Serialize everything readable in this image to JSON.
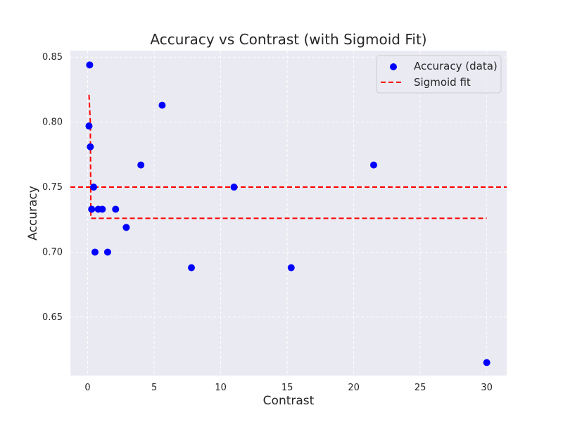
{
  "chart_data": {
    "type": "scatter",
    "title": "Accuracy vs Contrast (with Sigmoid Fit)",
    "xlabel": "Contrast",
    "ylabel": "Accuracy",
    "xlim": [
      -1.3,
      31.5
    ],
    "ylim": [
      0.605,
      0.855
    ],
    "x_ticks": [
      0,
      5,
      10,
      15,
      20,
      25,
      30
    ],
    "y_ticks": [
      0.65,
      0.7,
      0.75,
      0.8,
      0.85
    ],
    "x_tick_labels": [
      "0",
      "5",
      "10",
      "15",
      "20",
      "25",
      "30"
    ],
    "y_tick_labels": [
      "0.65",
      "0.70",
      "0.75",
      "0.80",
      "0.85"
    ],
    "grid": true,
    "legend_position": "top-right",
    "series": [
      {
        "name": "Accuracy (data)",
        "kind": "scatter",
        "color": "#0000ff",
        "points": [
          {
            "x": 0.1,
            "y": 0.797
          },
          {
            "x": 0.15,
            "y": 0.844
          },
          {
            "x": 0.2,
            "y": 0.781
          },
          {
            "x": 0.3,
            "y": 0.733
          },
          {
            "x": 0.45,
            "y": 0.75
          },
          {
            "x": 0.55,
            "y": 0.7
          },
          {
            "x": 0.8,
            "y": 0.733
          },
          {
            "x": 1.1,
            "y": 0.733
          },
          {
            "x": 1.5,
            "y": 0.7
          },
          {
            "x": 2.1,
            "y": 0.733
          },
          {
            "x": 2.9,
            "y": 0.719
          },
          {
            "x": 4.0,
            "y": 0.767
          },
          {
            "x": 5.6,
            "y": 0.813
          },
          {
            "x": 7.8,
            "y": 0.688
          },
          {
            "x": 11.0,
            "y": 0.75
          },
          {
            "x": 15.3,
            "y": 0.688
          },
          {
            "x": 21.5,
            "y": 0.767
          },
          {
            "x": 30.0,
            "y": 0.615
          }
        ]
      },
      {
        "name": "Sigmoid fit",
        "kind": "line",
        "color": "#ff0000",
        "dash": true,
        "points": [
          {
            "x": 0.1,
            "y": 0.821
          },
          {
            "x": 0.2,
            "y": 0.8
          },
          {
            "x": 0.24,
            "y": 0.726
          },
          {
            "x": 30.0,
            "y": 0.726
          }
        ]
      },
      {
        "name": "",
        "kind": "hline",
        "color": "#ff0000",
        "dash": true,
        "y": 0.75
      }
    ]
  }
}
